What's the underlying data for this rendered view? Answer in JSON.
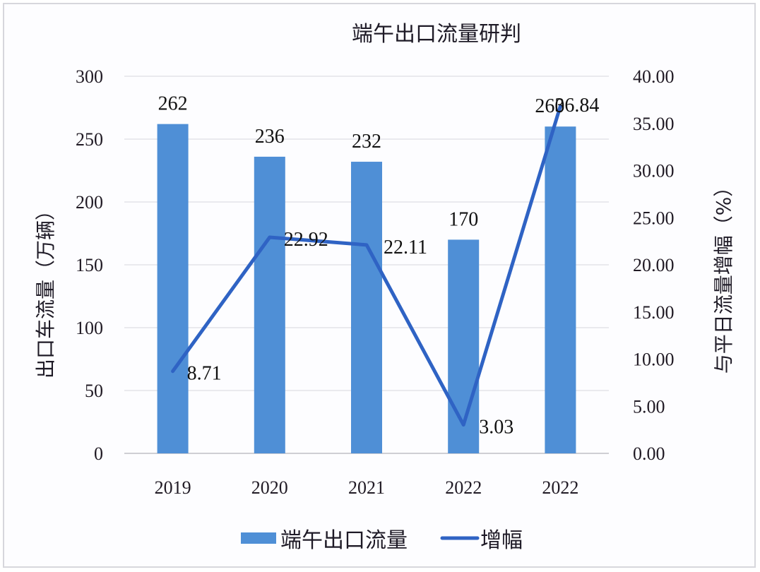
{
  "chart_data": {
    "type": "bar+line",
    "title": "端午出口流量研判",
    "categories": [
      "2019",
      "2020",
      "2021",
      "2022",
      "2022"
    ],
    "series": [
      {
        "name": "端午出口流量",
        "type": "bar",
        "axis": "left",
        "color": "#4f8fd6",
        "values": [
          262,
          236,
          232,
          170,
          260
        ],
        "labels": [
          "262",
          "236",
          "232",
          "170",
          "260"
        ]
      },
      {
        "name": "增幅",
        "type": "line",
        "axis": "right",
        "color": "#2f63c4",
        "values": [
          8.71,
          22.92,
          22.11,
          3.03,
          36.84
        ],
        "labels": [
          "8.71",
          "22.92",
          "22.11",
          "3.03",
          "36.84"
        ]
      }
    ],
    "ylabel": "出口车流量（万辆）",
    "ylabel_right": "与平日流量增幅（%）",
    "xlabel": "",
    "ylim": [
      0,
      300
    ],
    "ylim_right": [
      0,
      40
    ],
    "yticks": [
      "0",
      "50",
      "100",
      "150",
      "200",
      "250",
      "300"
    ],
    "yticks_right": [
      "0.00",
      "5.00",
      "10.00",
      "15.00",
      "20.00",
      "25.00",
      "30.00",
      "35.00",
      "40.00"
    ],
    "grid": true,
    "legend_position": "bottom"
  }
}
